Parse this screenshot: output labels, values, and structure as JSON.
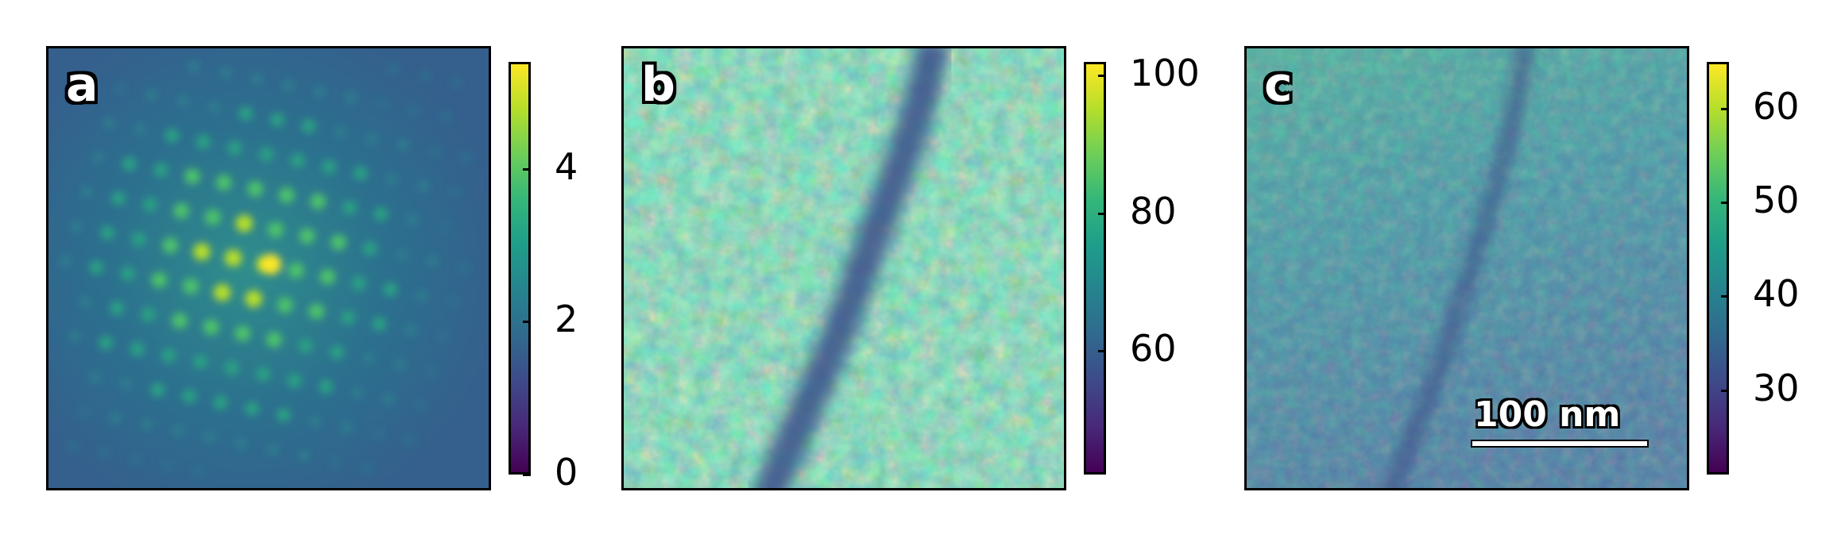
{
  "panels": [
    {
      "label": "a",
      "colorbar_ticks": [
        "0",
        "2",
        "4"
      ],
      "colorbar_range": [
        0,
        5.4
      ]
    },
    {
      "label": "b",
      "colorbar_ticks": [
        "60",
        "80",
        "100"
      ],
      "colorbar_range": [
        42,
        102
      ]
    },
    {
      "label": "c",
      "colorbar_ticks": [
        "30",
        "40",
        "50",
        "60"
      ],
      "colorbar_range": [
        21,
        65
      ]
    }
  ],
  "scale_bar": {
    "label": "100 nm"
  },
  "colormap": "viridis"
}
